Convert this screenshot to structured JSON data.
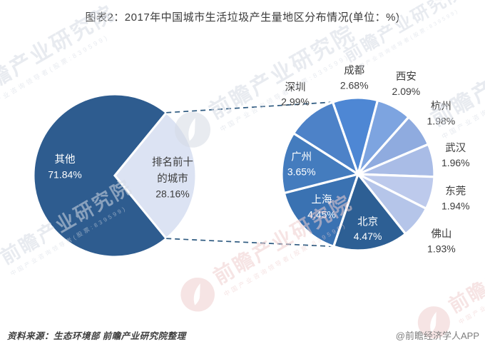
{
  "title": "图表2：2017年中国城市生活垃圾产生量地区分布情况(单位：%)",
  "footer": {
    "source": "资料来源：生态环境部 前瞻产业研究院整理",
    "brand": "@前瞻经济学人APP"
  },
  "watermark": {
    "text": "前瞻产业研究院",
    "subtext": "中国产业咨询领导者(股票:839599)"
  },
  "chart_data": {
    "type": "pie",
    "subtype": "pie-of-pie",
    "unit": "%",
    "label_color": "#3c3c3c",
    "connector_color": "#2e5a80",
    "primary": {
      "slices": [
        {
          "label": "其他",
          "value": 71.84,
          "display": "71.84%",
          "color": "#2e5c8f",
          "label_placement": "inside-white"
        },
        {
          "label": "排名前十的城市",
          "label_lines": [
            "排名前十",
            "的城市"
          ],
          "value": 28.16,
          "display": "28.16%",
          "color": "#dce3f3",
          "label_placement": "inside-dark"
        }
      ]
    },
    "secondary": {
      "start_angle_deg": -19.4,
      "slices": [
        {
          "label": "成都",
          "value": 2.68,
          "display": "2.68%",
          "color": "#4e87d4",
          "label_placement": "outside"
        },
        {
          "label": "西安",
          "value": 2.09,
          "display": "2.09%",
          "color": "#7da4e0",
          "label_placement": "outside"
        },
        {
          "label": "杭州",
          "value": 1.98,
          "display": "1.98%",
          "color": "#8fabdf",
          "label_placement": "outside"
        },
        {
          "label": "武汉",
          "value": 1.96,
          "display": "1.96%",
          "color": "#a9bce6",
          "label_placement": "outside"
        },
        {
          "label": "东莞",
          "value": 1.94,
          "display": "1.94%",
          "color": "#bdcaec",
          "label_placement": "outside"
        },
        {
          "label": "佛山",
          "value": 1.93,
          "display": "1.93%",
          "color": "#b5c5e9",
          "label_placement": "outside"
        },
        {
          "label": "北京",
          "value": 4.47,
          "display": "4.47%",
          "color": "#2d5f94",
          "label_placement": "inside"
        },
        {
          "label": "上海",
          "value": 4.45,
          "display": "4.45%",
          "color": "#3a72b2",
          "label_placement": "inside"
        },
        {
          "label": "广州",
          "value": 3.65,
          "display": "3.65%",
          "color": "#447cbe",
          "label_placement": "inside"
        },
        {
          "label": "深圳",
          "value": 2.99,
          "display": "2.99%",
          "color": "#4d82c8",
          "label_placement": "outside"
        }
      ]
    }
  }
}
